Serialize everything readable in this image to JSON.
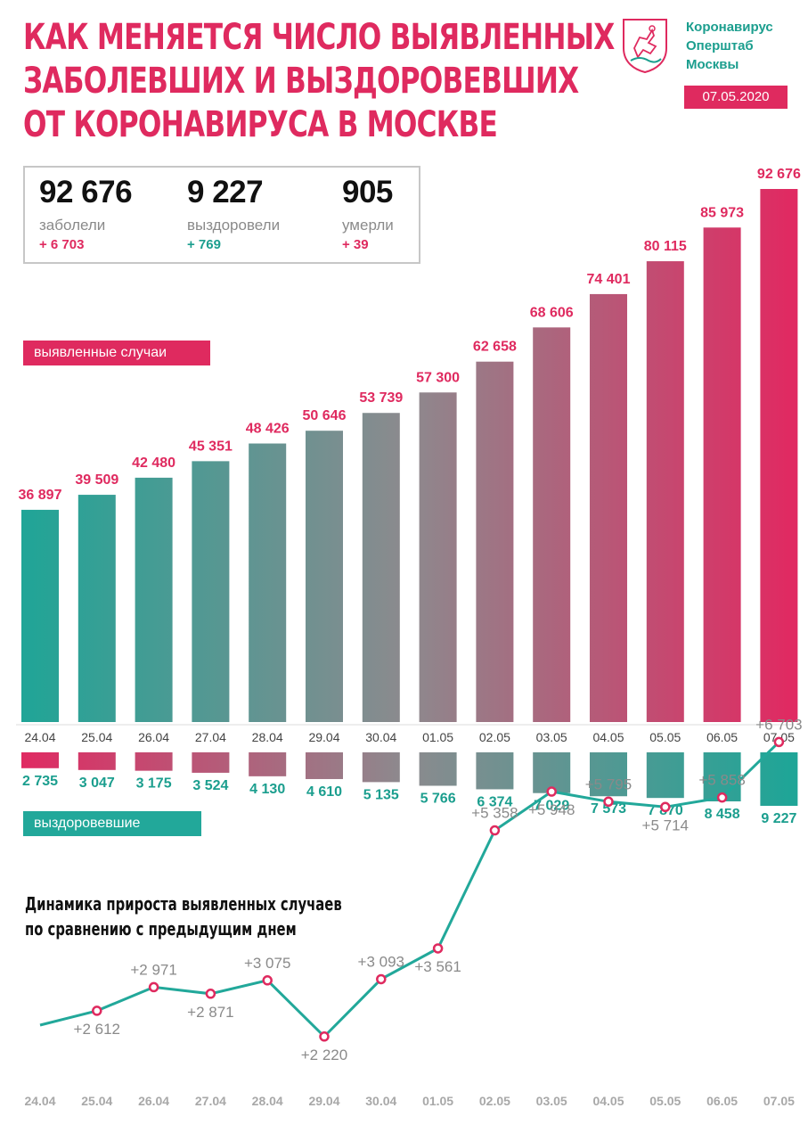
{
  "header": {
    "title_lines": [
      "Как меняется число выявленных",
      "заболевших и выздоровевших",
      "от коронавируса в Москве"
    ],
    "org_lines": [
      "Коронавирус",
      "Оперштаб",
      "Москвы"
    ],
    "date": "07.05.2020",
    "logo_icon": "moscow-coat-of-arms-icon"
  },
  "stats": [
    {
      "value": "92 676",
      "label": "заболели",
      "delta": "+ 6 703",
      "color": "#df2a5f"
    },
    {
      "value": "9 227",
      "label": "выздоровели",
      "delta": "+ 769",
      "color": "#1b9e8e"
    },
    {
      "value": "905",
      "label": "умерли",
      "delta": "+ 39",
      "color": "#df2a5f"
    }
  ],
  "legend": {
    "cases": "выявленные случаи",
    "recovered": "выздоровевшие"
  },
  "colors": {
    "pink": "#df2a5f",
    "teal": "#22a89a",
    "grey_axis": "#d6d6d6"
  },
  "chart_data": [
    {
      "type": "bar",
      "title": "выявленные случаи",
      "categories": [
        "24.04",
        "25.04",
        "26.04",
        "27.04",
        "28.04",
        "29.04",
        "30.04",
        "01.05",
        "02.05",
        "03.05",
        "04.05",
        "05.05",
        "06.05",
        "07.05"
      ],
      "values": [
        36897,
        39509,
        42480,
        45351,
        48426,
        50646,
        53739,
        57300,
        62658,
        68606,
        74401,
        80115,
        85973,
        92676
      ],
      "labels": [
        "36 897",
        "39 509",
        "42 480",
        "45 351",
        "48 426",
        "50 646",
        "53 739",
        "57 300",
        "62 658",
        "68 606",
        "74 401",
        "80 115",
        "85 973",
        "92 676"
      ],
      "ylim": [
        0,
        92676
      ]
    },
    {
      "type": "bar",
      "title": "выздоровевшие",
      "categories": [
        "24.04",
        "25.04",
        "26.04",
        "27.04",
        "28.04",
        "29.04",
        "30.04",
        "01.05",
        "02.05",
        "03.05",
        "04.05",
        "05.05",
        "06.05",
        "07.05"
      ],
      "values": [
        2735,
        3047,
        3175,
        3524,
        4130,
        4610,
        5135,
        5766,
        6374,
        7029,
        7573,
        7870,
        8458,
        9227
      ],
      "labels": [
        "2 735",
        "3 047",
        "3 175",
        "3 524",
        "4 130",
        "4 610",
        "5 135",
        "5 766",
        "6 374",
        "7 029",
        "7 573",
        "7 870",
        "8 458",
        "9 227"
      ],
      "ylim": [
        0,
        9227
      ]
    },
    {
      "type": "line",
      "title": "Динамика прироста выявленных случаев по сравнению с предыдущим днем",
      "categories": [
        "24.04",
        "25.04",
        "26.04",
        "27.04",
        "28.04",
        "29.04",
        "30.04",
        "01.05",
        "02.05",
        "03.05",
        "04.05",
        "05.05",
        "06.05",
        "07.05"
      ],
      "values": [
        null,
        2612,
        2971,
        2871,
        3075,
        2220,
        3093,
        3561,
        5358,
        5948,
        5795,
        5714,
        5858,
        6703
      ],
      "labels": [
        "",
        "+2 612",
        "+2 971",
        "+2 871",
        "+3 075",
        "+2 220",
        "+3 093",
        "+3 561",
        "+5 358",
        "+5 948",
        "+5 795",
        "+5 714",
        "+5 858",
        "+6 703"
      ],
      "label_position": [
        "",
        "below",
        "above",
        "below",
        "above",
        "below",
        "above",
        "below",
        "above",
        "below",
        "above",
        "below",
        "above",
        "above"
      ]
    }
  ],
  "line_title_lines": [
    "Динамика прироста выявленных случаев",
    "по сравнению с предыдущим днем"
  ]
}
